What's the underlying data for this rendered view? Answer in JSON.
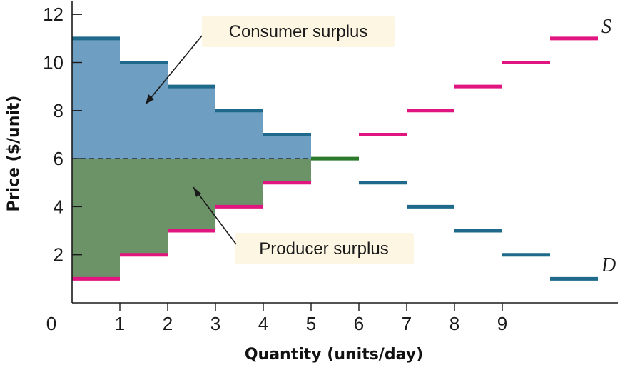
{
  "chart_data": {
    "type": "step",
    "xlabel": "Quantity (units/day)",
    "ylabel": "Price ($/unit)",
    "x_ticks": [
      "0",
      "1",
      "2",
      "3",
      "4",
      "5",
      "6",
      "7",
      "8",
      "9"
    ],
    "y_ticks": [
      "2",
      "4",
      "6",
      "8",
      "10",
      "12"
    ],
    "xlim": [
      0,
      11
    ],
    "ylim": [
      0,
      12.6
    ],
    "equilibrium_price": 6,
    "demand": {
      "label": "D",
      "color": "#1f6a8a",
      "values": [
        11,
        10,
        9,
        8,
        7,
        6,
        5,
        4,
        3,
        2,
        1
      ]
    },
    "supply": {
      "label": "S",
      "color": "#e0157f",
      "values": [
        1,
        2,
        3,
        4,
        5,
        6,
        7,
        8,
        9,
        10,
        11
      ]
    },
    "equilibrium_unit": {
      "x_start": 5,
      "x_end": 6,
      "price": 6,
      "color": "#2a7a2a"
    },
    "annotations": {
      "consumer_surplus": {
        "text": "Consumer surplus",
        "color": "#6e9ec2"
      },
      "producer_surplus": {
        "text": "Producer surplus",
        "color": "#6b9367"
      }
    },
    "callout_bg": "#fdf6e3"
  }
}
